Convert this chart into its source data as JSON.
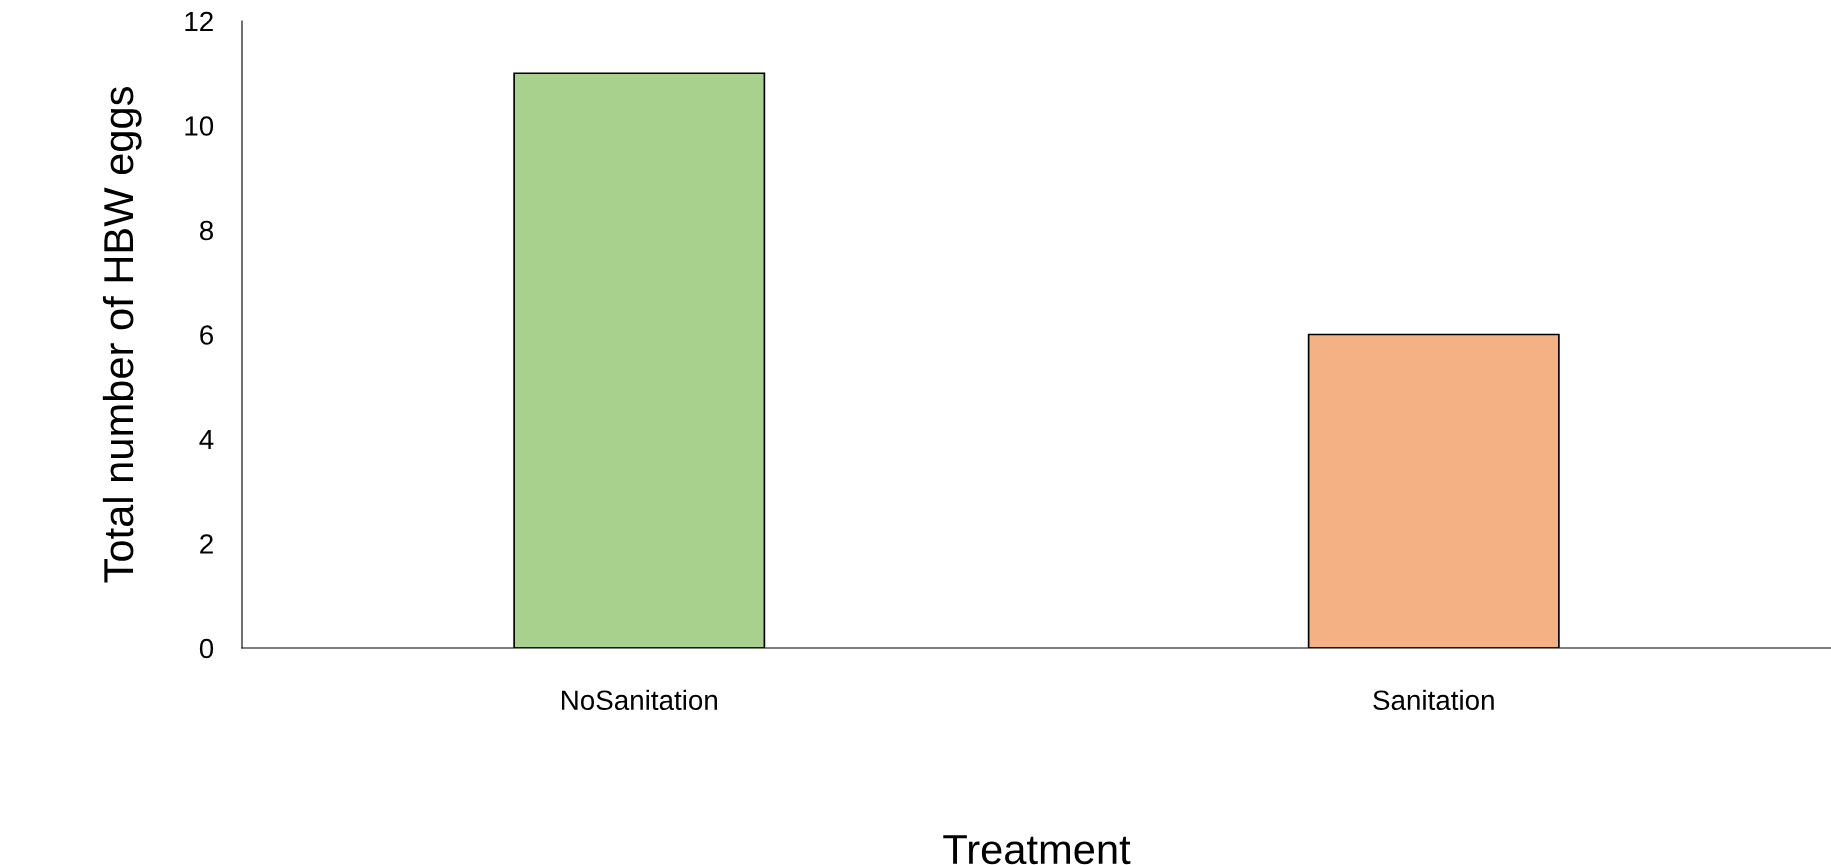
{
  "chart_data": {
    "type": "bar",
    "xlabel": "Treatment",
    "ylabel": "Total number of HBW eggs",
    "categories": [
      "NoSanitation",
      "Sanitation"
    ],
    "values": [
      11,
      6
    ],
    "colors": [
      "#a9d18e",
      "#f4b183"
    ],
    "ylim": [
      0,
      12
    ],
    "yticks": [
      0,
      2,
      4,
      6,
      8,
      10,
      12
    ],
    "grid": false,
    "legend": false
  }
}
